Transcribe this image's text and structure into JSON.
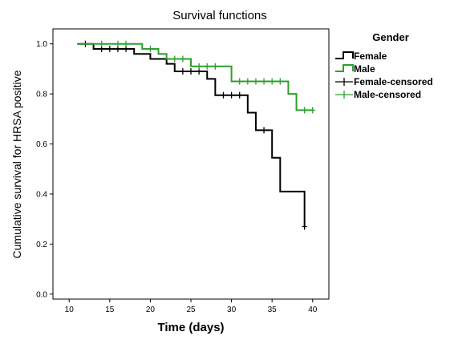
{
  "chart_data": {
    "type": "line",
    "subtype": "kaplan-meier-step",
    "title": "Survival functions",
    "xlabel": "Time (days)",
    "ylabel": "Cumulative survival for HRSA positive",
    "xlim": [
      8,
      42
    ],
    "ylim": [
      -0.02,
      1.06
    ],
    "xticks": [
      10,
      15,
      20,
      25,
      30,
      35,
      40
    ],
    "yticks": [
      0.0,
      0.2,
      0.4,
      0.6,
      0.8,
      1.0
    ],
    "ytick_labels": [
      "0.0",
      "0.2",
      "0.4",
      "0.6",
      "0.8",
      "1.0"
    ],
    "grid": false,
    "legend": {
      "title": "Gender",
      "placement": "right",
      "entries": [
        {
          "label": "Female",
          "kind": "step",
          "color": "#000000"
        },
        {
          "label": "Male",
          "kind": "step",
          "color": "#2ca02c"
        },
        {
          "label": "Female-censored",
          "kind": "censor",
          "color": "#000000"
        },
        {
          "label": "Male-censored",
          "kind": "censor",
          "color": "#2ca02c"
        }
      ]
    },
    "series": [
      {
        "name": "Female",
        "color": "#000000",
        "steps": [
          {
            "t": 11,
            "s": 1.0
          },
          {
            "t": 13,
            "s": 0.98
          },
          {
            "t": 18,
            "s": 0.96
          },
          {
            "t": 20,
            "s": 0.94
          },
          {
            "t": 22,
            "s": 0.92
          },
          {
            "t": 23,
            "s": 0.89
          },
          {
            "t": 27,
            "s": 0.86
          },
          {
            "t": 28,
            "s": 0.795
          },
          {
            "t": 32,
            "s": 0.725
          },
          {
            "t": 33,
            "s": 0.655
          },
          {
            "t": 35,
            "s": 0.545
          },
          {
            "t": 36,
            "s": 0.41
          },
          {
            "t": 39,
            "s": 0.41
          }
        ],
        "end_t": 39,
        "end_s": 0.27,
        "censored": [
          {
            "t": 12,
            "s": 1.0
          },
          {
            "t": 14,
            "s": 0.98
          },
          {
            "t": 15,
            "s": 0.98
          },
          {
            "t": 16,
            "s": 0.98
          },
          {
            "t": 17,
            "s": 0.98
          },
          {
            "t": 24,
            "s": 0.89
          },
          {
            "t": 25,
            "s": 0.89
          },
          {
            "t": 26,
            "s": 0.89
          },
          {
            "t": 29,
            "s": 0.795
          },
          {
            "t": 30,
            "s": 0.795
          },
          {
            "t": 31,
            "s": 0.795
          },
          {
            "t": 34,
            "s": 0.655
          },
          {
            "t": 39,
            "s": 0.27
          }
        ]
      },
      {
        "name": "Male",
        "color": "#2ca02c",
        "steps": [
          {
            "t": 11,
            "s": 1.0
          },
          {
            "t": 19,
            "s": 0.98
          },
          {
            "t": 21,
            "s": 0.96
          },
          {
            "t": 22,
            "s": 0.94
          },
          {
            "t": 25,
            "s": 0.91
          },
          {
            "t": 30,
            "s": 0.85
          },
          {
            "t": 37,
            "s": 0.8
          },
          {
            "t": 38,
            "s": 0.735
          }
        ],
        "end_t": 40,
        "end_s": 0.735,
        "censored": [
          {
            "t": 14,
            "s": 1.0
          },
          {
            "t": 16,
            "s": 1.0
          },
          {
            "t": 17,
            "s": 1.0
          },
          {
            "t": 20,
            "s": 0.98
          },
          {
            "t": 23,
            "s": 0.94
          },
          {
            "t": 24,
            "s": 0.94
          },
          {
            "t": 26,
            "s": 0.91
          },
          {
            "t": 27,
            "s": 0.91
          },
          {
            "t": 28,
            "s": 0.91
          },
          {
            "t": 31,
            "s": 0.85
          },
          {
            "t": 32,
            "s": 0.85
          },
          {
            "t": 33,
            "s": 0.85
          },
          {
            "t": 34,
            "s": 0.85
          },
          {
            "t": 35,
            "s": 0.85
          },
          {
            "t": 36,
            "s": 0.85
          },
          {
            "t": 39,
            "s": 0.735
          },
          {
            "t": 40,
            "s": 0.735
          }
        ]
      }
    ]
  }
}
